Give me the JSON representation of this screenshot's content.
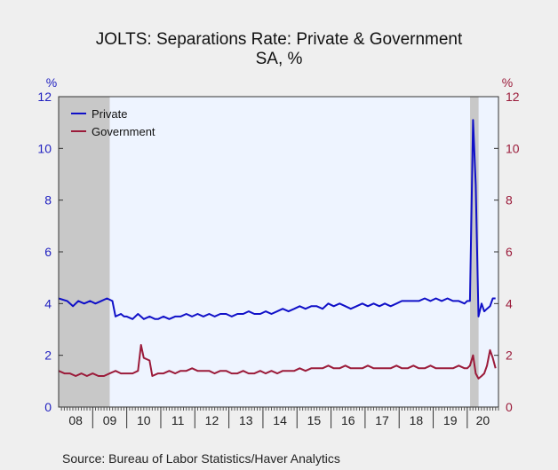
{
  "chart_data": {
    "type": "line",
    "title": "JOLTS: Separations Rate: Private & Government",
    "subtitle": "SA, %",
    "source": "Source:  Bureau of Labor Statistics/Haver Analytics",
    "left_axis": {
      "unit": "%",
      "ylim": [
        0,
        12
      ],
      "ticks": [
        "0",
        "2",
        "4",
        "6",
        "8",
        "10",
        "12"
      ],
      "color": "#2020c0"
    },
    "right_axis": {
      "unit": "%",
      "ylim": [
        0,
        12
      ],
      "ticks": [
        "0",
        "2",
        "4",
        "6",
        "8",
        "10",
        "12"
      ],
      "color": "#9b1b3a"
    },
    "x_axis": {
      "range": [
        2008.0,
        2020.917
      ],
      "tick_labels": [
        "08",
        "09",
        "10",
        "11",
        "12",
        "13",
        "14",
        "15",
        "16",
        "17",
        "18",
        "19",
        "20"
      ]
    },
    "recessions": [
      [
        2008.0,
        2009.5
      ],
      [
        2020.083,
        2020.333
      ]
    ],
    "legend_position": "top-left",
    "series": [
      {
        "name": "Private",
        "color": "#1010c8",
        "points": [
          [
            2008.0,
            4.2
          ],
          [
            2008.25,
            4.1
          ],
          [
            2008.42,
            3.9
          ],
          [
            2008.58,
            4.1
          ],
          [
            2008.75,
            4.0
          ],
          [
            2008.92,
            4.1
          ],
          [
            2009.08,
            4.0
          ],
          [
            2009.25,
            4.1
          ],
          [
            2009.42,
            4.2
          ],
          [
            2009.58,
            4.1
          ],
          [
            2009.67,
            3.5
          ],
          [
            2009.83,
            3.6
          ],
          [
            2009.92,
            3.5
          ],
          [
            2010.0,
            3.5
          ],
          [
            2010.17,
            3.4
          ],
          [
            2010.33,
            3.6
          ],
          [
            2010.5,
            3.4
          ],
          [
            2010.67,
            3.5
          ],
          [
            2010.83,
            3.4
          ],
          [
            2010.92,
            3.4
          ],
          [
            2011.08,
            3.5
          ],
          [
            2011.25,
            3.4
          ],
          [
            2011.42,
            3.5
          ],
          [
            2011.58,
            3.5
          ],
          [
            2011.75,
            3.6
          ],
          [
            2011.92,
            3.5
          ],
          [
            2012.08,
            3.6
          ],
          [
            2012.25,
            3.5
          ],
          [
            2012.42,
            3.6
          ],
          [
            2012.58,
            3.5
          ],
          [
            2012.75,
            3.6
          ],
          [
            2012.92,
            3.6
          ],
          [
            2013.08,
            3.5
          ],
          [
            2013.25,
            3.6
          ],
          [
            2013.42,
            3.6
          ],
          [
            2013.58,
            3.7
          ],
          [
            2013.75,
            3.6
          ],
          [
            2013.92,
            3.6
          ],
          [
            2014.08,
            3.7
          ],
          [
            2014.25,
            3.6
          ],
          [
            2014.42,
            3.7
          ],
          [
            2014.58,
            3.8
          ],
          [
            2014.75,
            3.7
          ],
          [
            2014.92,
            3.8
          ],
          [
            2015.08,
            3.9
          ],
          [
            2015.25,
            3.8
          ],
          [
            2015.42,
            3.9
          ],
          [
            2015.58,
            3.9
          ],
          [
            2015.75,
            3.8
          ],
          [
            2015.92,
            4.0
          ],
          [
            2016.08,
            3.9
          ],
          [
            2016.25,
            4.0
          ],
          [
            2016.42,
            3.9
          ],
          [
            2016.58,
            3.8
          ],
          [
            2016.75,
            3.9
          ],
          [
            2016.92,
            4.0
          ],
          [
            2017.08,
            3.9
          ],
          [
            2017.25,
            4.0
          ],
          [
            2017.42,
            3.9
          ],
          [
            2017.58,
            4.0
          ],
          [
            2017.75,
            3.9
          ],
          [
            2017.92,
            4.0
          ],
          [
            2018.08,
            4.1
          ],
          [
            2018.25,
            4.1
          ],
          [
            2018.42,
            4.1
          ],
          [
            2018.58,
            4.1
          ],
          [
            2018.75,
            4.2
          ],
          [
            2018.92,
            4.1
          ],
          [
            2019.08,
            4.2
          ],
          [
            2019.25,
            4.1
          ],
          [
            2019.42,
            4.2
          ],
          [
            2019.58,
            4.1
          ],
          [
            2019.75,
            4.1
          ],
          [
            2019.92,
            4.0
          ],
          [
            2020.0,
            4.1
          ],
          [
            2020.08,
            4.1
          ],
          [
            2020.17,
            11.1
          ],
          [
            2020.25,
            8.6
          ],
          [
            2020.33,
            3.5
          ],
          [
            2020.42,
            4.0
          ],
          [
            2020.5,
            3.7
          ],
          [
            2020.58,
            3.8
          ],
          [
            2020.67,
            3.9
          ],
          [
            2020.75,
            4.2
          ],
          [
            2020.83,
            4.2
          ]
        ]
      },
      {
        "name": "Government",
        "color": "#9b1b3a",
        "points": [
          [
            2008.0,
            1.4
          ],
          [
            2008.17,
            1.3
          ],
          [
            2008.33,
            1.3
          ],
          [
            2008.5,
            1.2
          ],
          [
            2008.67,
            1.3
          ],
          [
            2008.83,
            1.2
          ],
          [
            2009.0,
            1.3
          ],
          [
            2009.17,
            1.2
          ],
          [
            2009.33,
            1.2
          ],
          [
            2009.5,
            1.3
          ],
          [
            2009.67,
            1.4
          ],
          [
            2009.83,
            1.3
          ],
          [
            2010.0,
            1.3
          ],
          [
            2010.17,
            1.3
          ],
          [
            2010.33,
            1.4
          ],
          [
            2010.42,
            2.4
          ],
          [
            2010.5,
            1.9
          ],
          [
            2010.67,
            1.8
          ],
          [
            2010.75,
            1.2
          ],
          [
            2010.92,
            1.3
          ],
          [
            2011.08,
            1.3
          ],
          [
            2011.25,
            1.4
          ],
          [
            2011.42,
            1.3
          ],
          [
            2011.58,
            1.4
          ],
          [
            2011.75,
            1.4
          ],
          [
            2011.92,
            1.5
          ],
          [
            2012.08,
            1.4
          ],
          [
            2012.25,
            1.4
          ],
          [
            2012.42,
            1.4
          ],
          [
            2012.58,
            1.3
          ],
          [
            2012.75,
            1.4
          ],
          [
            2012.92,
            1.4
          ],
          [
            2013.08,
            1.3
          ],
          [
            2013.25,
            1.3
          ],
          [
            2013.42,
            1.4
          ],
          [
            2013.58,
            1.3
          ],
          [
            2013.75,
            1.3
          ],
          [
            2013.92,
            1.4
          ],
          [
            2014.08,
            1.3
          ],
          [
            2014.25,
            1.4
          ],
          [
            2014.42,
            1.3
          ],
          [
            2014.58,
            1.4
          ],
          [
            2014.75,
            1.4
          ],
          [
            2014.92,
            1.4
          ],
          [
            2015.08,
            1.5
          ],
          [
            2015.25,
            1.4
          ],
          [
            2015.42,
            1.5
          ],
          [
            2015.58,
            1.5
          ],
          [
            2015.75,
            1.5
          ],
          [
            2015.92,
            1.6
          ],
          [
            2016.08,
            1.5
          ],
          [
            2016.25,
            1.5
          ],
          [
            2016.42,
            1.6
          ],
          [
            2016.58,
            1.5
          ],
          [
            2016.75,
            1.5
          ],
          [
            2016.92,
            1.5
          ],
          [
            2017.08,
            1.6
          ],
          [
            2017.25,
            1.5
          ],
          [
            2017.42,
            1.5
          ],
          [
            2017.58,
            1.5
          ],
          [
            2017.75,
            1.5
          ],
          [
            2017.92,
            1.6
          ],
          [
            2018.08,
            1.5
          ],
          [
            2018.25,
            1.5
          ],
          [
            2018.42,
            1.6
          ],
          [
            2018.58,
            1.5
          ],
          [
            2018.75,
            1.5
          ],
          [
            2018.92,
            1.6
          ],
          [
            2019.08,
            1.5
          ],
          [
            2019.25,
            1.5
          ],
          [
            2019.42,
            1.5
          ],
          [
            2019.58,
            1.5
          ],
          [
            2019.75,
            1.6
          ],
          [
            2019.92,
            1.5
          ],
          [
            2020.0,
            1.5
          ],
          [
            2020.08,
            1.6
          ],
          [
            2020.17,
            2.0
          ],
          [
            2020.25,
            1.3
          ],
          [
            2020.33,
            1.1
          ],
          [
            2020.42,
            1.2
          ],
          [
            2020.5,
            1.3
          ],
          [
            2020.58,
            1.6
          ],
          [
            2020.67,
            2.2
          ],
          [
            2020.75,
            1.9
          ],
          [
            2020.83,
            1.5
          ]
        ]
      }
    ]
  }
}
